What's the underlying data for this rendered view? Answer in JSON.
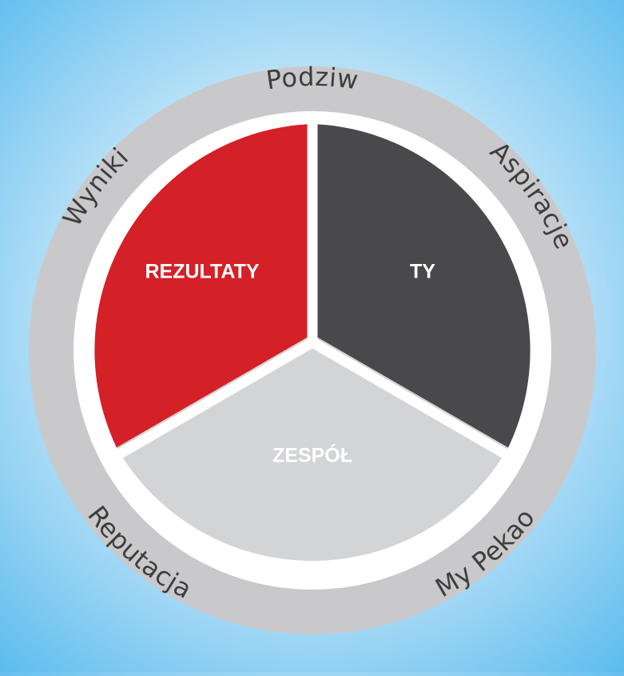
{
  "diagram": {
    "segments": [
      {
        "id": "rezultaty",
        "label": "REZULTATY",
        "color": "#d42027"
      },
      {
        "id": "ty",
        "label": "TY",
        "color": "#49494b"
      },
      {
        "id": "zespol",
        "label": "ZESPÓŁ",
        "color": "#d3d4d6"
      }
    ],
    "ring_labels": [
      {
        "id": "podziw",
        "text": "Podziw"
      },
      {
        "id": "aspiracje",
        "text": "Aspiracje"
      },
      {
        "id": "my-pekao",
        "text": "My Pekao"
      },
      {
        "id": "reputacja",
        "text": "Reputacja"
      },
      {
        "id": "wyniki",
        "text": "Wyniki"
      }
    ],
    "ring_color": "#c9c9cb",
    "separator_color": "#ffffff"
  }
}
